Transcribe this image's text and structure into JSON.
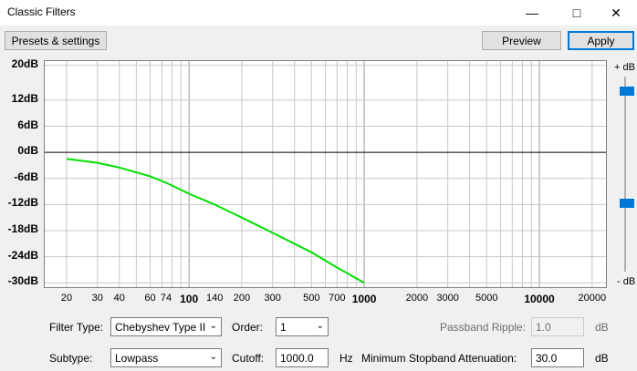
{
  "window": {
    "title": "Classic Filters",
    "minimize_icon": "minimize-icon",
    "maximize_icon": "maximize-icon",
    "close_icon": "close-icon"
  },
  "toolbar": {
    "presets_label": "Presets & settings",
    "preview_label": "Preview",
    "apply_label": "Apply"
  },
  "graph": {
    "y_ticks": [
      "20dB",
      "12dB",
      "6dB",
      "0dB",
      "-6dB",
      "-12dB",
      "-18dB",
      "-24dB",
      "-30dB"
    ],
    "x_ticks": [
      {
        "label": "20",
        "bold": false
      },
      {
        "label": "30",
        "bold": false
      },
      {
        "label": "40",
        "bold": false
      },
      {
        "label": "60",
        "bold": false
      },
      {
        "label": "74",
        "bold": false
      },
      {
        "label": "100",
        "bold": true
      },
      {
        "label": "140",
        "bold": false
      },
      {
        "label": "200",
        "bold": false
      },
      {
        "label": "300",
        "bold": false
      },
      {
        "label": "500",
        "bold": false
      },
      {
        "label": "700",
        "bold": false
      },
      {
        "label": "1000",
        "bold": true
      },
      {
        "label": "2000",
        "bold": false
      },
      {
        "label": "3000",
        "bold": false
      },
      {
        "label": "5000",
        "bold": false
      },
      {
        "label": "10000",
        "bold": true
      },
      {
        "label": "20000",
        "bold": false
      }
    ],
    "curve_color": "#00e000",
    "curve": [
      {
        "hz": 20,
        "db": -1.5
      },
      {
        "hz": 30,
        "db": -2.4
      },
      {
        "hz": 40,
        "db": -3.5
      },
      {
        "hz": 60,
        "db": -5.5
      },
      {
        "hz": 74,
        "db": -7.0
      },
      {
        "hz": 100,
        "db": -9.5
      },
      {
        "hz": 140,
        "db": -12.0
      },
      {
        "hz": 200,
        "db": -15.0
      },
      {
        "hz": 300,
        "db": -18.5
      },
      {
        "hz": 500,
        "db": -23.0
      },
      {
        "hz": 700,
        "db": -26.5
      },
      {
        "hz": 1000,
        "db": -30.0
      }
    ]
  },
  "slider": {
    "top_label": "+ dB",
    "bottom_label": "- dB"
  },
  "controls": {
    "filter_type_label": "Filter Type:",
    "filter_type_value": "Chebyshev Type II",
    "order_label": "Order:",
    "order_value": "1",
    "passband_label": "Passband Ripple:",
    "passband_value": "1.0",
    "passband_unit": "dB",
    "subtype_label": "Subtype:",
    "subtype_value": "Lowpass",
    "cutoff_label": "Cutoff:",
    "cutoff_value": "1000.0",
    "cutoff_unit": "Hz",
    "stopband_label": "Minimum Stopband Attenuation:",
    "stopband_value": "30.0",
    "stopband_unit": "dB"
  }
}
